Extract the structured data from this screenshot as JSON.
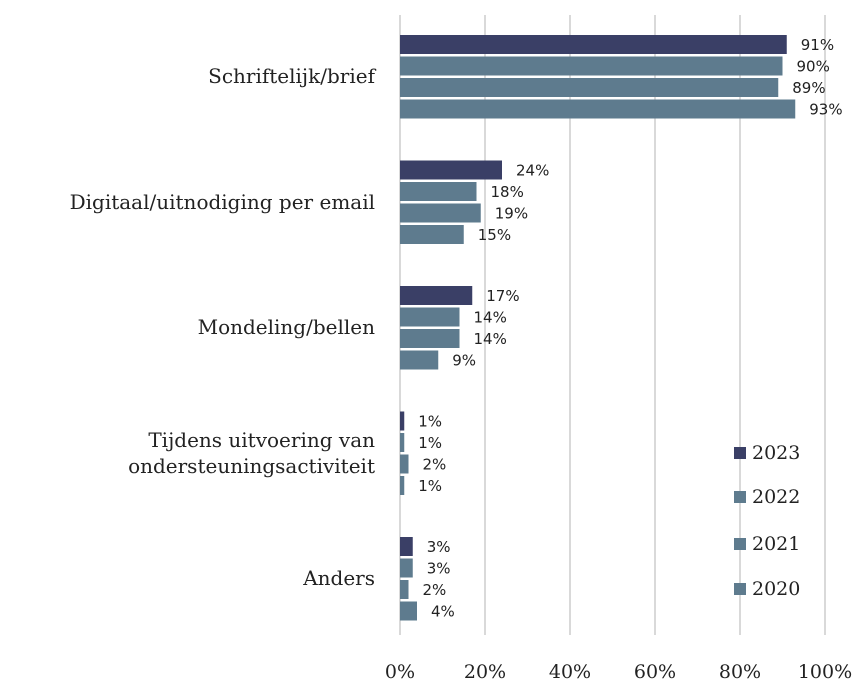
{
  "chart_data": {
    "type": "barh",
    "categories": [
      "Schriftelijk/brief",
      "Digitaal/uitnodiging per email",
      "Mondeling/bellen",
      "Tijdens uitvoering van ondersteuningsactiviteit",
      "Anders"
    ],
    "series": [
      {
        "name": "2023",
        "color": "#3a3f66",
        "values": [
          91,
          24,
          17,
          1,
          3
        ],
        "value_labels": [
          "91%",
          "24%",
          "17%",
          "1%",
          "3%"
        ]
      },
      {
        "name": "2022",
        "color": "#5e7b8e",
        "values": [
          90,
          18,
          14,
          1,
          3
        ],
        "value_labels": [
          "90%",
          "18%",
          "14%",
          "1%",
          "3%"
        ]
      },
      {
        "name": "2021",
        "color": "#5e7b8e",
        "values": [
          89,
          19,
          14,
          2,
          2
        ],
        "value_labels": [
          "89%",
          "19%",
          "14%",
          "2%",
          "2%"
        ]
      },
      {
        "name": "2020",
        "color": "#5e7b8e",
        "values": [
          93,
          15,
          9,
          1,
          4
        ],
        "value_labels": [
          "93%",
          "15%",
          "9%",
          "1%",
          "4%"
        ]
      }
    ],
    "xlim": [
      0,
      100
    ],
    "xticks": [
      {
        "value": 0,
        "label": "0%"
      },
      {
        "value": 20,
        "label": "20%"
      },
      {
        "value": 40,
        "label": "40%"
      },
      {
        "value": 60,
        "label": "60%"
      },
      {
        "value": 80,
        "label": "80%"
      },
      {
        "value": 100,
        "label": "100%"
      }
    ],
    "grid": true,
    "legend": "lower right"
  }
}
